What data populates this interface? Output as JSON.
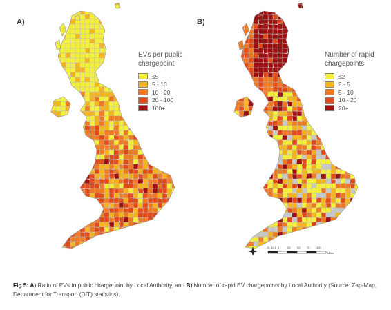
{
  "panel_a": {
    "label": "A)",
    "legend_title_line1": "EVs per public",
    "legend_title_line2": "chargepoint",
    "classes": [
      {
        "label": "≤5",
        "color": "#f4f03a"
      },
      {
        "label": "5 - 10",
        "color": "#f5b41c"
      },
      {
        "label": "10 - 20",
        "color": "#f07a22"
      },
      {
        "label": "20 - 100",
        "color": "#e34a1a"
      },
      {
        "label": "100+",
        "color": "#9e1010"
      }
    ]
  },
  "panel_b": {
    "label": "B)",
    "legend_title_line1": "Number of rapid",
    "legend_title_line2": "chargepoints",
    "classes": [
      {
        "label": "≤2",
        "color": "#f4f03a"
      },
      {
        "label": "2 - 5",
        "color": "#f5b41c"
      },
      {
        "label": "5 - 10",
        "color": "#f07a22"
      },
      {
        "label": "10 - 20",
        "color": "#e34a1a"
      },
      {
        "label": "20+",
        "color": "#9e1010"
      }
    ],
    "no_data_color": "#c8c8c8",
    "scale_labels": [
      "25",
      "12.5",
      "0",
      "25",
      "50",
      "75",
      "100"
    ],
    "scale_unit": "Miles"
  },
  "caption": {
    "fig": "Fig 5: ",
    "a_marker": "A)",
    "a_text": " Ratio of EVs to public chargepoint by Local Authority, and ",
    "b_marker": "B)",
    "b_text": " Number of rapid EV chargepoints by Local Authority (Source: Zap-Map, Department for Transport (DfT) statistics)."
  }
}
